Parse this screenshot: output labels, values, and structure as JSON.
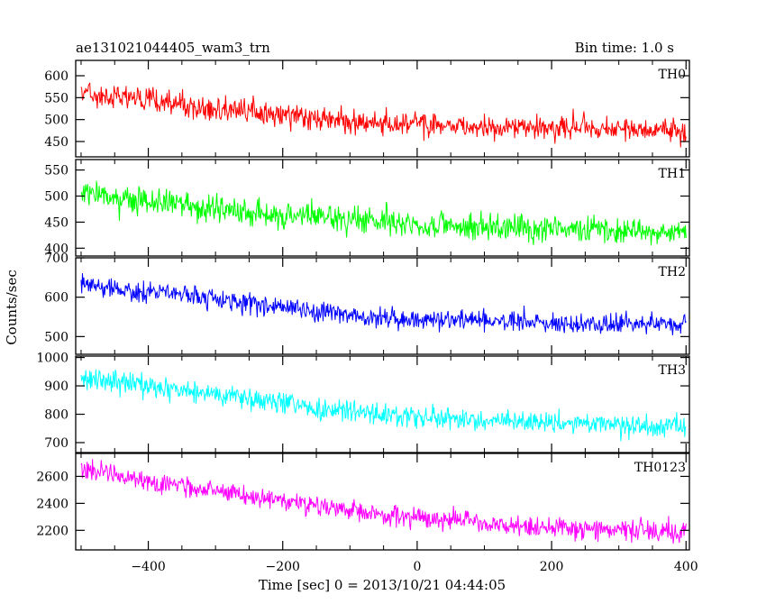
{
  "header": {
    "title": "ae131021044405_wam3_trn",
    "bin_time": "Bin time: 1.0 s"
  },
  "chart_data": {
    "type": "line",
    "xlabel": "Time [sec] 0 = 2013/10/21 04:44:05",
    "ylabel": "Counts/sec",
    "xlim": [
      -508,
      405
    ],
    "x_ticks": [
      -400,
      -200,
      0,
      200,
      400
    ],
    "x_tick_labels": [
      "−400",
      "−200",
      "0",
      "200",
      "400"
    ],
    "bin_time_s": 1.0,
    "panels": [
      {
        "label": "TH0",
        "color": "#ff0000",
        "ylim": [
          415,
          635
        ],
        "y_ticks": [
          450,
          500,
          550,
          600
        ],
        "y_tick_labels": [
          "450",
          "500",
          "550",
          "600"
        ],
        "trend": [
          [
            -500,
            565
          ],
          [
            -400,
            545
          ],
          [
            -300,
            525
          ],
          [
            -200,
            510
          ],
          [
            -100,
            495
          ],
          [
            0,
            490
          ],
          [
            100,
            485
          ],
          [
            200,
            480
          ],
          [
            300,
            478
          ],
          [
            400,
            475
          ]
        ],
        "noise_amplitude": 28
      },
      {
        "label": "TH1",
        "color": "#00ff00",
        "ylim": [
          385,
          570
        ],
        "y_ticks": [
          400,
          450,
          500,
          550
        ],
        "y_tick_labels": [
          "400",
          "450",
          "500",
          "550"
        ],
        "trend": [
          [
            -500,
            505
          ],
          [
            -400,
            490
          ],
          [
            -300,
            475
          ],
          [
            -200,
            465
          ],
          [
            -100,
            455
          ],
          [
            0,
            445
          ],
          [
            100,
            440
          ],
          [
            200,
            437
          ],
          [
            300,
            434
          ],
          [
            400,
            432
          ]
        ],
        "noise_amplitude": 25
      },
      {
        "label": "TH2",
        "color": "#0000ff",
        "ylim": [
          455,
          700
        ],
        "y_ticks": [
          500,
          600,
          700
        ],
        "y_tick_labels": [
          "500",
          "600",
          "700"
        ],
        "trend": [
          [
            -500,
            630
          ],
          [
            -400,
            615
          ],
          [
            -300,
            595
          ],
          [
            -200,
            575
          ],
          [
            -100,
            555
          ],
          [
            0,
            545
          ],
          [
            100,
            540
          ],
          [
            200,
            535
          ],
          [
            300,
            532
          ],
          [
            400,
            530
          ]
        ],
        "noise_amplitude": 26
      },
      {
        "label": "TH3",
        "color": "#00ffff",
        "ylim": [
          665,
          1005
        ],
        "y_ticks": [
          700,
          800,
          900,
          1000
        ],
        "y_tick_labels": [
          "700",
          "800",
          "900",
          "1000"
        ],
        "trend": [
          [
            -500,
            930
          ],
          [
            -400,
            900
          ],
          [
            -300,
            870
          ],
          [
            -200,
            840
          ],
          [
            -100,
            810
          ],
          [
            0,
            790
          ],
          [
            100,
            780
          ],
          [
            200,
            770
          ],
          [
            300,
            762
          ],
          [
            400,
            755
          ]
        ],
        "noise_amplitude": 38
      },
      {
        "label": "TH0123",
        "color": "#ff00ff",
        "ylim": [
          2055,
          2770
        ],
        "y_ticks": [
          2200,
          2400,
          2600
        ],
        "y_tick_labels": [
          "2200",
          "2400",
          "2600"
        ],
        "trend": [
          [
            -500,
            2640
          ],
          [
            -400,
            2570
          ],
          [
            -300,
            2490
          ],
          [
            -200,
            2420
          ],
          [
            -100,
            2350
          ],
          [
            0,
            2290
          ],
          [
            100,
            2250
          ],
          [
            200,
            2220
          ],
          [
            300,
            2200
          ],
          [
            400,
            2190
          ]
        ],
        "noise_amplitude": 75
      }
    ]
  }
}
